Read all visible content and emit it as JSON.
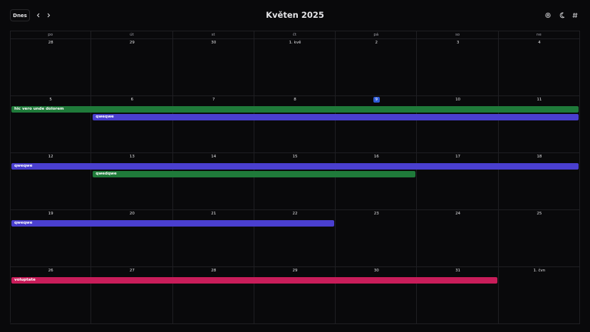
{
  "header": {
    "today": "Dnes",
    "title": "Květen 2025"
  },
  "weekdays": [
    "po",
    "út",
    "st",
    "čt",
    "pá",
    "so",
    "ne"
  ],
  "weeks": [
    {
      "days": [
        "28",
        "29",
        "30",
        "1. kvě",
        "2",
        "3",
        "4"
      ],
      "events": []
    },
    {
      "days": [
        "5",
        "6",
        "7",
        "8",
        "9",
        "10",
        "11"
      ],
      "events": [
        {
          "label": "hic vero unde dolorem"
        },
        {
          "label": "qweqwe"
        }
      ]
    },
    {
      "days": [
        "12",
        "13",
        "14",
        "15",
        "16",
        "17",
        "18"
      ],
      "events": [
        {
          "label": "qweqwe"
        },
        {
          "label": "qwedqwe"
        }
      ]
    },
    {
      "days": [
        "19",
        "20",
        "21",
        "22",
        "23",
        "24",
        "25"
      ],
      "events": [
        {
          "label": "qweqwe"
        }
      ]
    },
    {
      "days": [
        "26",
        "27",
        "28",
        "29",
        "30",
        "31",
        "1. čvn"
      ],
      "events": [
        {
          "label": "voluptate"
        }
      ]
    }
  ]
}
